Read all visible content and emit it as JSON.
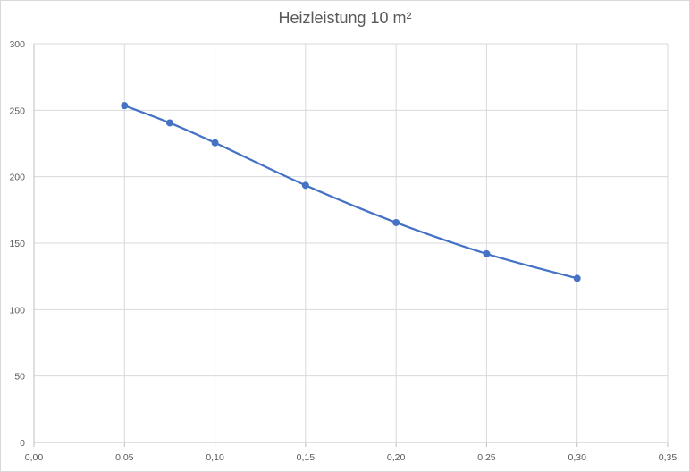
{
  "chart_data": {
    "type": "scatter",
    "title": "Heizleistung 10 m²",
    "xlabel": "",
    "ylabel": "",
    "xlim": [
      0,
      0.35
    ],
    "ylim": [
      0,
      300
    ],
    "x_ticks": [
      "0,00",
      "0,05",
      "0,10",
      "0,15",
      "0,20",
      "0,25",
      "0,30",
      "0,35"
    ],
    "y_ticks": [
      "0",
      "50",
      "100",
      "150",
      "200",
      "250",
      "300"
    ],
    "grid": true,
    "legend": "none",
    "line_color": "#4472c4",
    "series": [
      {
        "x": [
          0.05,
          0.075,
          0.1,
          0.15,
          0.2,
          0.25,
          0.3
        ],
        "y": [
          253.5,
          240.5,
          225.5,
          193.5,
          165.5,
          142,
          123.5
        ]
      }
    ]
  }
}
